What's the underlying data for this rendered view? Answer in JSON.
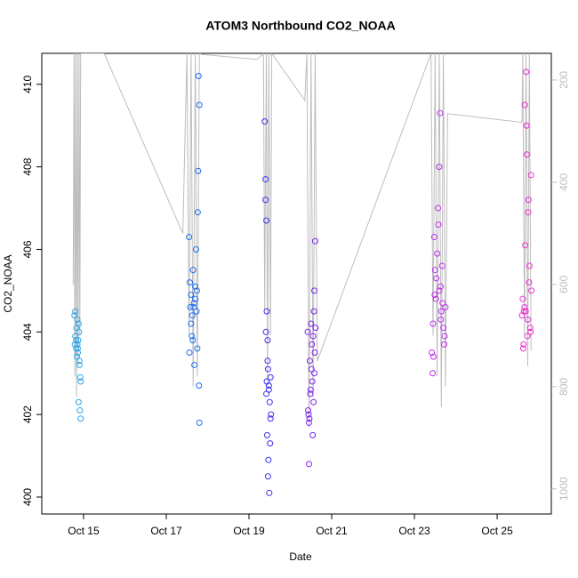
{
  "chart_data": {
    "type": "scatter",
    "title": "ATOM3 Northbound CO2_NOAA",
    "x_label": "Date",
    "y_label": "CO2_NOAA",
    "xlim": [
      13.99,
      26.31
    ],
    "xticks": [
      {
        "value": 15,
        "label": "Oct 15"
      },
      {
        "value": 17,
        "label": "Oct 17"
      },
      {
        "value": 19,
        "label": "Oct 19"
      },
      {
        "value": 21,
        "label": "Oct 21"
      },
      {
        "value": 23,
        "label": "Oct 23"
      },
      {
        "value": 25,
        "label": "Oct 25"
      }
    ],
    "ylim": [
      399.59,
      410.75
    ],
    "yticks": [
      400,
      402,
      404,
      406,
      408,
      410
    ],
    "y2lim": [
      1049,
      148
    ],
    "y2ticks": [
      200,
      400,
      600,
      800,
      1000
    ],
    "series": [
      {
        "mode": "points",
        "color": "#2aa7ea",
        "x": [
          14.78,
          14.8,
          14.82,
          14.83,
          14.85,
          14.86,
          14.87,
          14.88,
          14.9,
          14.92,
          14.8,
          14.84,
          14.88,
          14.91,
          14.93,
          14.86,
          14.82,
          14.9,
          14.89,
          14.93,
          14.79,
          14.85
        ],
        "values": [
          404.4,
          403.9,
          403.6,
          404.1,
          403.7,
          403.5,
          403.8,
          404.2,
          403.3,
          402.9,
          404.5,
          403.4,
          402.3,
          402.1,
          401.9,
          403.6,
          403.8,
          403.2,
          404.0,
          402.8,
          403.7,
          404.3
        ]
      },
      {
        "mode": "points",
        "color": "#1a6cf0",
        "x": [
          17.55,
          17.57,
          17.58,
          17.6,
          17.62,
          17.63,
          17.65,
          17.67,
          17.68,
          17.7,
          17.72,
          17.73,
          17.75,
          17.77,
          17.78,
          17.8,
          17.6,
          17.64,
          17.7,
          17.76,
          17.79,
          17.8,
          17.56,
          17.66,
          17.74
        ],
        "values": [
          406.3,
          405.2,
          404.6,
          404.9,
          403.9,
          404.4,
          405.5,
          404.7,
          403.2,
          404.8,
          406.0,
          404.5,
          403.6,
          407.9,
          410.2,
          409.5,
          404.2,
          403.8,
          405.1,
          406.9,
          402.7,
          401.8,
          403.5,
          404.6,
          405.0
        ]
      },
      {
        "mode": "points",
        "color": "#3c2ff0",
        "x": [
          19.38,
          19.4,
          19.42,
          19.43,
          19.45,
          19.46,
          19.48,
          19.5,
          19.52,
          19.53,
          19.4,
          19.42,
          19.44,
          19.47,
          19.49,
          19.51,
          19.43,
          19.45,
          19.48,
          19.52,
          19.41,
          19.46
        ],
        "values": [
          409.1,
          407.7,
          406.7,
          404.5,
          403.8,
          403.1,
          402.7,
          402.3,
          402.9,
          402.0,
          407.2,
          402.5,
          401.5,
          400.9,
          400.1,
          401.3,
          402.8,
          403.3,
          402.6,
          401.9,
          404.0,
          400.5
        ]
      },
      {
        "mode": "points",
        "color": "#7a22ee",
        "x": [
          20.42,
          20.44,
          20.45,
          20.47,
          20.48,
          20.5,
          20.52,
          20.53,
          20.55,
          20.57,
          20.58,
          20.6,
          20.43,
          20.46,
          20.49,
          20.51,
          20.54,
          20.56,
          20.59,
          20.61,
          20.45,
          20.58
        ],
        "values": [
          404.0,
          402.0,
          401.8,
          403.3,
          402.5,
          404.2,
          403.7,
          402.8,
          403.9,
          404.5,
          405.0,
          406.2,
          402.1,
          401.9,
          402.6,
          403.1,
          401.5,
          402.3,
          403.5,
          404.1,
          400.8,
          403.0
        ]
      },
      {
        "mode": "points",
        "color": "#c12ef0",
        "x": [
          23.42,
          23.45,
          23.48,
          23.5,
          23.52,
          23.55,
          23.57,
          23.6,
          23.62,
          23.65,
          23.67,
          23.7,
          23.72,
          23.75,
          23.44,
          23.49,
          23.53,
          23.58,
          23.63,
          23.68,
          23.73,
          23.6,
          23.64,
          23.46
        ],
        "values": [
          403.5,
          404.2,
          406.3,
          405.5,
          404.8,
          405.9,
          407.0,
          405.0,
          409.3,
          404.5,
          405.6,
          404.1,
          403.7,
          404.6,
          403.0,
          404.9,
          405.3,
          406.6,
          405.1,
          404.7,
          403.9,
          408.0,
          404.3,
          403.4
        ]
      },
      {
        "mode": "points",
        "color": "#ef2ad0",
        "x": [
          25.6,
          25.62,
          25.65,
          25.67,
          25.7,
          25.72,
          25.75,
          25.77,
          25.8,
          25.82,
          25.63,
          25.66,
          25.68,
          25.71,
          25.74,
          25.78,
          25.81,
          25.83,
          25.69,
          25.73,
          25.64,
          25.76
        ],
        "values": [
          404.4,
          404.8,
          404.5,
          409.5,
          410.3,
          408.3,
          406.9,
          405.2,
          404.1,
          407.8,
          403.6,
          404.6,
          406.1,
          409.0,
          404.3,
          405.6,
          404.0,
          405.0,
          404.5,
          403.9,
          403.7,
          407.2
        ]
      },
      {
        "mode": "line",
        "axis": "y2",
        "color": "#bdbdbd",
        "x": [
          14.75,
          14.77,
          14.79,
          14.81,
          14.83,
          14.85,
          14.87,
          14.89,
          14.91,
          14.93,
          15.5,
          17.4,
          17.5,
          17.55,
          17.6,
          17.65,
          17.7,
          17.75,
          17.8,
          17.85,
          19.2,
          19.35,
          19.38,
          19.42,
          19.45,
          19.48,
          19.52,
          19.55,
          20.35,
          20.4,
          20.45,
          20.5,
          20.55,
          20.6,
          20.65,
          23.4,
          23.45,
          23.5,
          23.55,
          23.6,
          23.65,
          23.7,
          23.75,
          23.8,
          25.6,
          25.62,
          25.66,
          25.7,
          25.74,
          25.78,
          25.82
        ],
        "values": [
          600,
          148,
          780,
          148,
          820,
          148,
          760,
          148,
          700,
          148,
          148,
          500,
          148,
          700,
          148,
          800,
          148,
          780,
          148,
          150,
          160,
          148,
          650,
          148,
          800,
          148,
          700,
          148,
          240,
          148,
          880,
          148,
          820,
          148,
          750,
          148,
          700,
          148,
          780,
          148,
          840,
          148,
          800,
          266,
          283,
          148,
          700,
          148,
          760,
          148,
          730
        ]
      }
    ]
  }
}
